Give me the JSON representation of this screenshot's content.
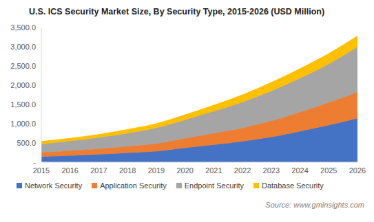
{
  "chart_data": {
    "type": "area",
    "title": "U.S. ICS Security Market Size, By Security Type, 2015-2026 (USD Million)",
    "source": "Source: www.gminsights.com",
    "categories": [
      "2015",
      "2016",
      "2017",
      "2018",
      "2019",
      "2020",
      "2021",
      "2022",
      "2023",
      "2024",
      "2025",
      "2026"
    ],
    "series": [
      {
        "name": "Network Security",
        "color": "#4472c4",
        "values": [
          140,
          170,
          200,
          240,
          280,
          370,
          450,
          540,
          650,
          800,
          960,
          1140
        ]
      },
      {
        "name": "Application Security",
        "color": "#ed7d31",
        "values": [
          110,
          130,
          150,
          170,
          200,
          250,
          300,
          350,
          420,
          500,
          590,
          680
        ]
      },
      {
        "name": "Endpoint Security",
        "color": "#a5a5a5",
        "values": [
          220,
          250,
          290,
          340,
          410,
          480,
          570,
          670,
          780,
          880,
          1000,
          1170
        ]
      },
      {
        "name": "Database Security",
        "color": "#ffc000",
        "values": [
          70,
          70,
          80,
          100,
          110,
          130,
          160,
          190,
          220,
          250,
          270,
          290
        ]
      }
    ],
    "ylim": [
      0,
      3500
    ],
    "yticks": [
      {
        "value": 0,
        "label": "-"
      },
      {
        "value": 500,
        "label": "500.0"
      },
      {
        "value": 1000,
        "label": "1,000.0"
      },
      {
        "value": 1500,
        "label": "1,500.0"
      },
      {
        "value": 2000,
        "label": "2,000.0"
      },
      {
        "value": 2500,
        "label": "2,500.0"
      },
      {
        "value": 3000,
        "label": "3,000.0"
      },
      {
        "value": 3500,
        "label": "3,500.0"
      }
    ],
    "stacked": true,
    "grid": false,
    "legend": "bottom"
  }
}
